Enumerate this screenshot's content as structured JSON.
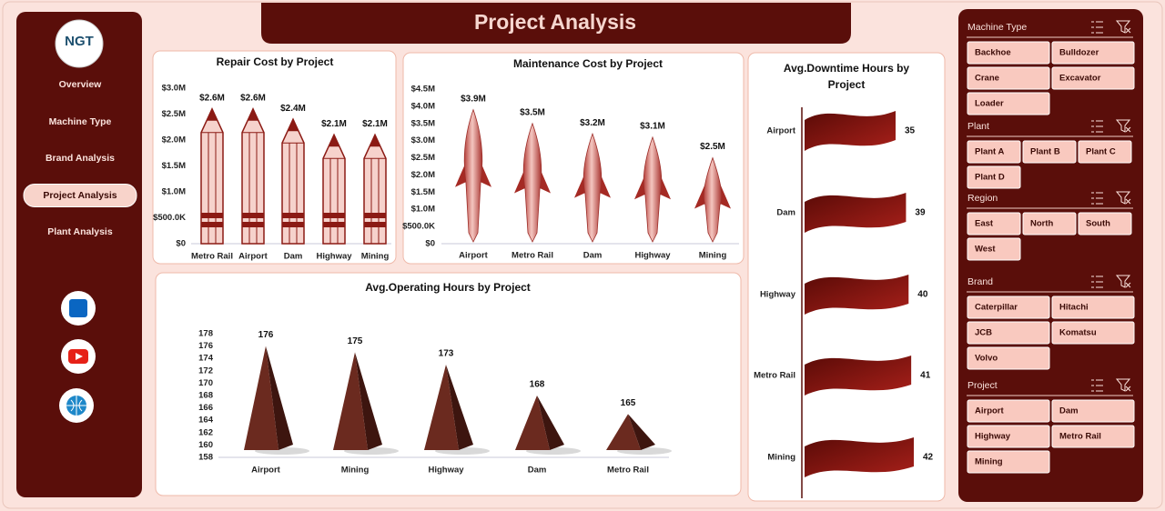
{
  "header": {
    "title": "Project Analysis"
  },
  "logo": {
    "text": "NGT"
  },
  "nav": [
    {
      "label": "Overview"
    },
    {
      "label": "Machine Type"
    },
    {
      "label": "Brand Analysis"
    },
    {
      "label": "Project Analysis",
      "active": true
    },
    {
      "label": "Plant Analysis"
    }
  ],
  "chart_data": [
    {
      "type": "pencil-bar",
      "title": "Repair Cost by Project",
      "categories": [
        "Metro Rail",
        "Airport",
        "Dam",
        "Highway",
        "Mining"
      ],
      "values": [
        2600000,
        2600000,
        2400000,
        2100000,
        2100000
      ],
      "value_labels": [
        "$2.6M",
        "$2.6M",
        "$2.4M",
        "$2.1M",
        "$2.1M"
      ],
      "color": "#8b1a14",
      "ylim": [
        0,
        3000000
      ],
      "yticks": [
        {
          "value": 0,
          "label": "$0"
        },
        {
          "value": 500000,
          "label": "$500.0K"
        },
        {
          "value": 1000000,
          "label": "$1.0M"
        },
        {
          "value": 1500000,
          "label": "$1.5M"
        },
        {
          "value": 2000000,
          "label": "$2.0M"
        },
        {
          "value": 2500000,
          "label": "$2.5M"
        },
        {
          "value": 3000000,
          "label": "$3.0M"
        }
      ],
      "grid": false
    },
    {
      "type": "rocket-bar",
      "title": "Maintenance Cost by Project",
      "categories": [
        "Airport",
        "Metro Rail",
        "Dam",
        "Highway",
        "Mining"
      ],
      "values": [
        3900000,
        3500000,
        3200000,
        3100000,
        2500000
      ],
      "value_labels": [
        "$3.9M",
        "$3.5M",
        "$3.2M",
        "$3.1M",
        "$2.5M"
      ],
      "color": "#c0504d",
      "ylim": [
        0,
        4500000
      ],
      "yticks": [
        {
          "value": 0,
          "label": "$0"
        },
        {
          "value": 500000,
          "label": "$500.0K"
        },
        {
          "value": 1000000,
          "label": "$1.0M"
        },
        {
          "value": 1500000,
          "label": "$1.5M"
        },
        {
          "value": 2000000,
          "label": "$2.0M"
        },
        {
          "value": 2500000,
          "label": "$2.5M"
        },
        {
          "value": 3000000,
          "label": "$3.0M"
        },
        {
          "value": 3500000,
          "label": "$3.5M"
        },
        {
          "value": 4000000,
          "label": "$4.0M"
        },
        {
          "value": 4500000,
          "label": "$4.5M"
        }
      ],
      "grid": false
    },
    {
      "type": "flag-bar",
      "title": "Avg.Downtime Hours by Project",
      "categories": [
        "Airport",
        "Dam",
        "Highway",
        "Metro Rail",
        "Mining"
      ],
      "values": [
        35,
        39,
        40,
        41,
        42
      ],
      "color": "#8b1a14"
    },
    {
      "type": "pyramid-bar",
      "title": "Avg.Operating Hours by Project",
      "categories": [
        "Airport",
        "Mining",
        "Highway",
        "Dam",
        "Metro Rail"
      ],
      "values": [
        176,
        175,
        173,
        168,
        165
      ],
      "color": "#6b2a1f",
      "ylim": [
        158,
        178
      ],
      "yticks": [
        158,
        160,
        162,
        164,
        166,
        168,
        170,
        172,
        174,
        176,
        178
      ],
      "grid": false
    }
  ],
  "slicers": [
    {
      "title": "Machine Type",
      "items": [
        "Backhoe",
        "Bulldozer",
        "Crane",
        "Excavator",
        "Loader"
      ]
    },
    {
      "title": "Plant",
      "items": [
        "Plant A",
        "Plant B",
        "Plant C",
        "Plant D"
      ]
    },
    {
      "title": "Region",
      "items": [
        "East",
        "North",
        "South",
        "West"
      ]
    },
    {
      "title": "Brand",
      "items": [
        "Caterpillar",
        "Hitachi",
        "JCB",
        "Komatsu",
        "Volvo"
      ]
    },
    {
      "title": "Project",
      "items": [
        "Airport",
        "Dam",
        "Highway",
        "Metro Rail",
        "Mining"
      ]
    }
  ]
}
